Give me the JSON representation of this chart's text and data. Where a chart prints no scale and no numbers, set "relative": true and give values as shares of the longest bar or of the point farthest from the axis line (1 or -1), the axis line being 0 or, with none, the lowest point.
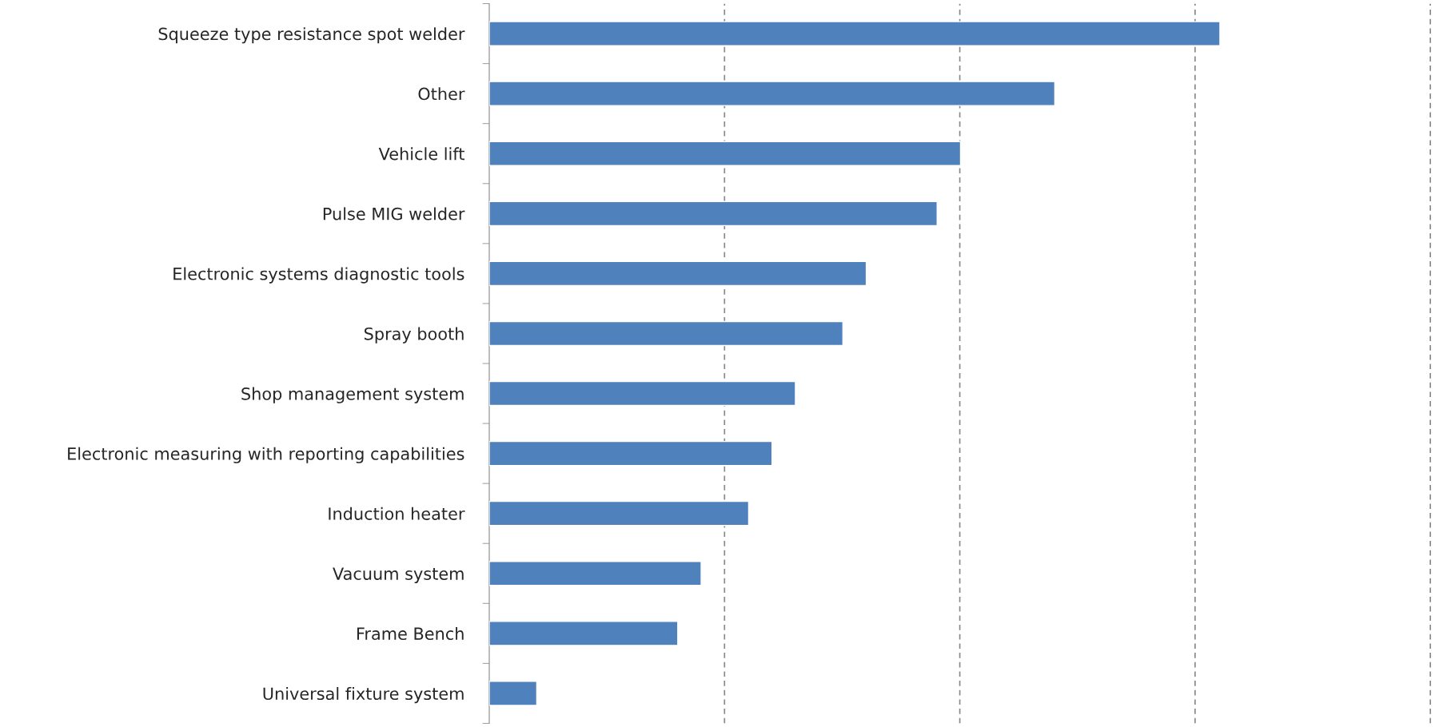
{
  "chart_data": {
    "type": "bar",
    "orientation": "horizontal",
    "relative": true,
    "categories": [
      "Squeeze type resistance spot welder",
      "Other",
      "Vehicle lift",
      "Pulse MIG welder",
      "Electronic systems diagnostic tools",
      "Spray booth",
      "Shop management system",
      "Electronic measuring with reporting capabilities",
      "Induction heater",
      "Vacuum system",
      "Frame Bench",
      "Universal fixture system"
    ],
    "values": [
      1,
      0.774,
      0.645,
      0.613,
      0.516,
      0.484,
      0.419,
      0.387,
      0.355,
      0.29,
      0.258,
      0.065
    ],
    "color": "#4f81bd",
    "ref_lines": [
      {
        "axis": "x",
        "value": 0.322,
        "color": "#888888",
        "line_style": "dashed"
      },
      {
        "axis": "x",
        "value": 0.644,
        "color": "#888888",
        "line_style": "dashed"
      },
      {
        "axis": "x",
        "value": 0.966,
        "color": "#888888",
        "line_style": "dashed"
      },
      {
        "axis": "x",
        "value": 1.288,
        "color": "#888888",
        "line_style": "dashed"
      }
    ]
  }
}
